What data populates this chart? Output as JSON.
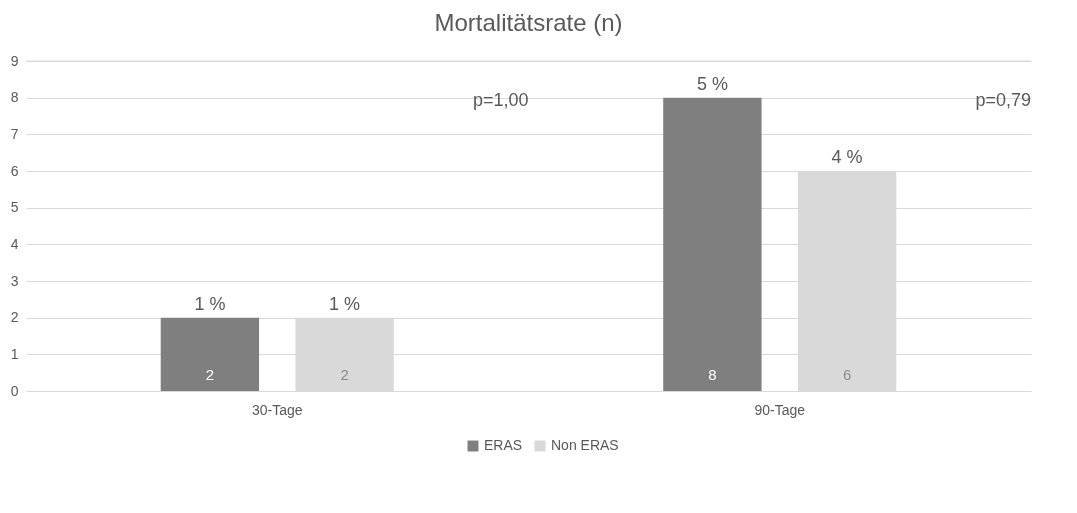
{
  "chart_data": {
    "type": "bar",
    "title": "Mortalitätsrate (n)",
    "categories": [
      "30-Tage",
      "90-Tage"
    ],
    "series": [
      {
        "name": "ERAS",
        "color": "#7f7f7f",
        "values": [
          2,
          8
        ]
      },
      {
        "name": "Non ERAS",
        "color": "#d9d9d9",
        "values": [
          2,
          6
        ]
      }
    ],
    "data_labels": true,
    "ylim": [
      0,
      9
    ],
    "yticks": [
      0,
      1,
      2,
      3,
      4,
      5,
      6,
      7,
      8,
      9
    ],
    "grid": "y",
    "legend": "bottom",
    "annotations": [
      "1 %",
      "1 %",
      "5 %",
      "4 %",
      "p=1,00",
      "p=0,79"
    ]
  }
}
